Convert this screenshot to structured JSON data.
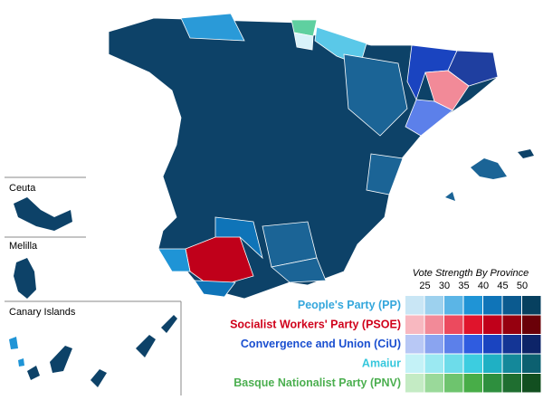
{
  "insets": [
    {
      "label": "Ceuta"
    },
    {
      "label": "Melilla"
    },
    {
      "label": "Canary Islands"
    }
  ],
  "legend": {
    "title": "Vote Strength By Province",
    "ticks": [
      25,
      30,
      35,
      40,
      45,
      50
    ],
    "parties": [
      {
        "name": "People's Party (PP)",
        "color": "#35a7dc",
        "shades": [
          "#c9e6f5",
          "#9dd1ee",
          "#5bb5e6",
          "#1f94d6",
          "#0f74b8",
          "#0b5a8f",
          "#07405f"
        ]
      },
      {
        "name": "Socialist Workers' Party (PSOE)",
        "color": "#d0021b",
        "shades": [
          "#f8b8c0",
          "#f28a98",
          "#ec4a5e",
          "#e0142c",
          "#c0001a",
          "#96000f",
          "#6a0008"
        ]
      },
      {
        "name": "Convergence and Union (CiU)",
        "color": "#1a4fd0",
        "shades": [
          "#b8c8f5",
          "#8aa4f0",
          "#5c80ea",
          "#2f5ce0",
          "#1a44c0",
          "#143595",
          "#0d2468"
        ]
      },
      {
        "name": "Amaiur",
        "color": "#35c7dc",
        "shades": [
          "#c4f2f7",
          "#9be9f2",
          "#6ddcea",
          "#3ccde0",
          "#1fb0c4",
          "#14889a",
          "#0c6070"
        ]
      },
      {
        "name": "Basque Nationalist Party (PNV)",
        "color": "#4caf50",
        "shades": [
          "#c4ebc4",
          "#9ad99a",
          "#6ec46e",
          "#48ad48",
          "#2e8f3e",
          "#1f6e30",
          "#124f20"
        ]
      }
    ]
  }
}
